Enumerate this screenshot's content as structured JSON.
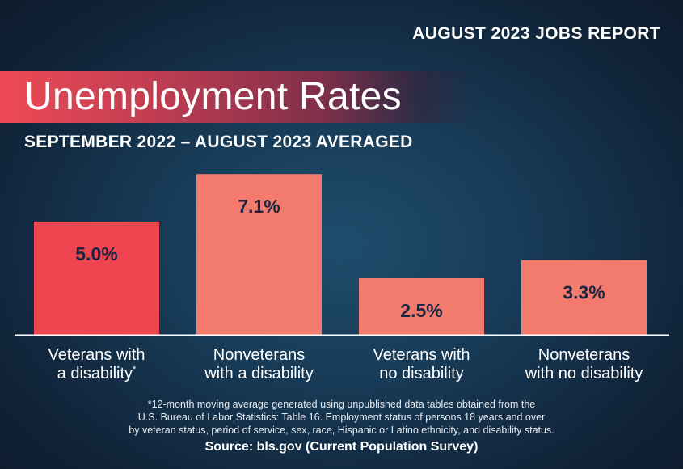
{
  "header": {
    "report_label": "AUGUST 2023 JOBS REPORT",
    "title": "Unemployment Rates",
    "subtitle": "SEPTEMBER 2022 – AUGUST 2023 AVERAGED"
  },
  "colors": {
    "accent_bar": "#ee4550",
    "bar": "#f27b6e",
    "value_text": "#1b2440",
    "baseline": "#ffffff"
  },
  "chart_data": {
    "type": "bar",
    "categories": [
      [
        "Veterans with",
        "a disability*"
      ],
      [
        "Nonveterans",
        "with a disability"
      ],
      [
        "Veterans with",
        "no disability"
      ],
      [
        "Nonveterans",
        "with no disability"
      ]
    ],
    "values": [
      5.0,
      7.1,
      2.5,
      3.3
    ],
    "value_labels": [
      "5.0%",
      "7.1%",
      "2.5%",
      "3.3%"
    ],
    "highlighted_index": 0,
    "ylim": [
      0,
      7.6
    ],
    "title": "Unemployment Rates",
    "subtitle": "SEPTEMBER 2022 – AUGUST 2023 AVERAGED",
    "xlabel": "",
    "ylabel": "",
    "grid": false,
    "legend": "none"
  },
  "footnote": {
    "lines": [
      "*12-month moving average generated using unpublished data tables obtained from the",
      "U.S. Bureau of Labor Statistics: Table 16. Employment status of persons 18 years and over",
      "by veteran status, period of service, sex, race, Hispanic or Latino ethnicity, and disability status."
    ]
  },
  "source": "Source: bls.gov (Current Population Survey)"
}
